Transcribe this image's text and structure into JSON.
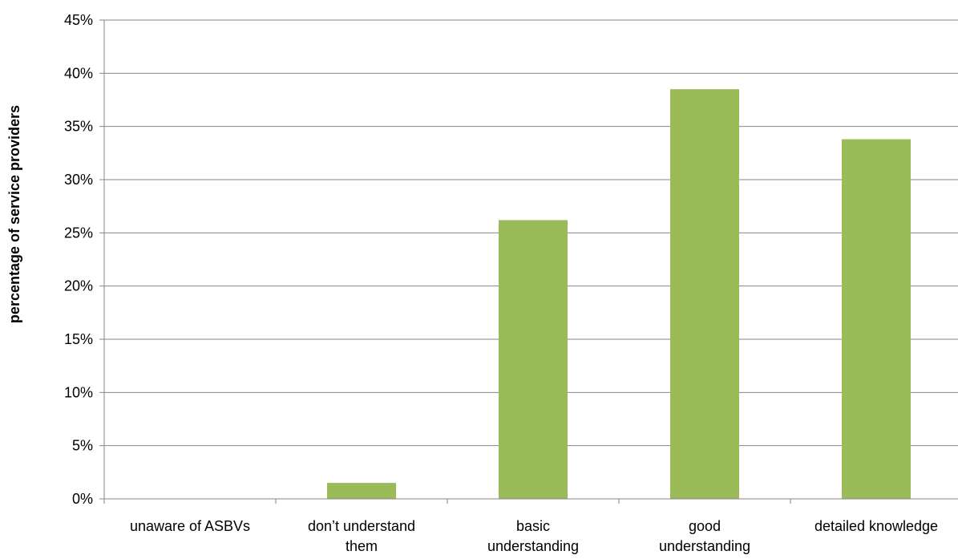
{
  "chart_data": {
    "type": "bar",
    "categories": [
      [
        "unaware of ASBVs"
      ],
      [
        "don’t understand",
        "them"
      ],
      [
        "basic",
        "understanding"
      ],
      [
        "good",
        "understanding"
      ],
      [
        "detailed knowledge"
      ]
    ],
    "values": [
      0,
      1.5,
      26.2,
      38.5,
      33.8
    ],
    "title": "",
    "xlabel": "",
    "ylabel": "percentage of service providers",
    "ylim": [
      0,
      45
    ],
    "ytick_step": 5,
    "ytick_labels": [
      "0%",
      "5%",
      "10%",
      "15%",
      "20%",
      "25%",
      "30%",
      "35%",
      "40%",
      "45%"
    ],
    "grid": "horizontal",
    "legend": "none",
    "colors": {
      "bar": "#9BBB59",
      "grid": "#868686",
      "axis": "#868686"
    }
  }
}
